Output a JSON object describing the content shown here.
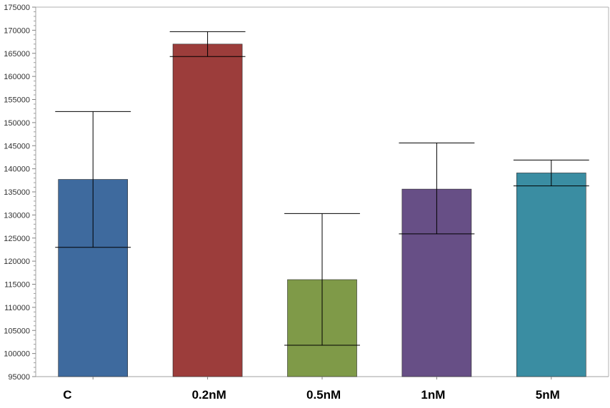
{
  "chart_data": {
    "type": "bar",
    "title": "",
    "xlabel": "",
    "ylabel": "",
    "ylim": [
      95000,
      175000
    ],
    "ytick_step": 5000,
    "grid": false,
    "categories": [
      "C",
      "0.2nM",
      "0.5nM",
      "1nM",
      "5nM"
    ],
    "values": [
      137700,
      167000,
      116000,
      135600,
      139100
    ],
    "error_low": [
      123000,
      164300,
      101800,
      125900,
      136300
    ],
    "error_high": [
      152400,
      169700,
      130300,
      145600,
      141900
    ],
    "colors": [
      "#3E6A9E",
      "#9C3D3B",
      "#7F9A48",
      "#674F86",
      "#3A8DA2"
    ]
  }
}
